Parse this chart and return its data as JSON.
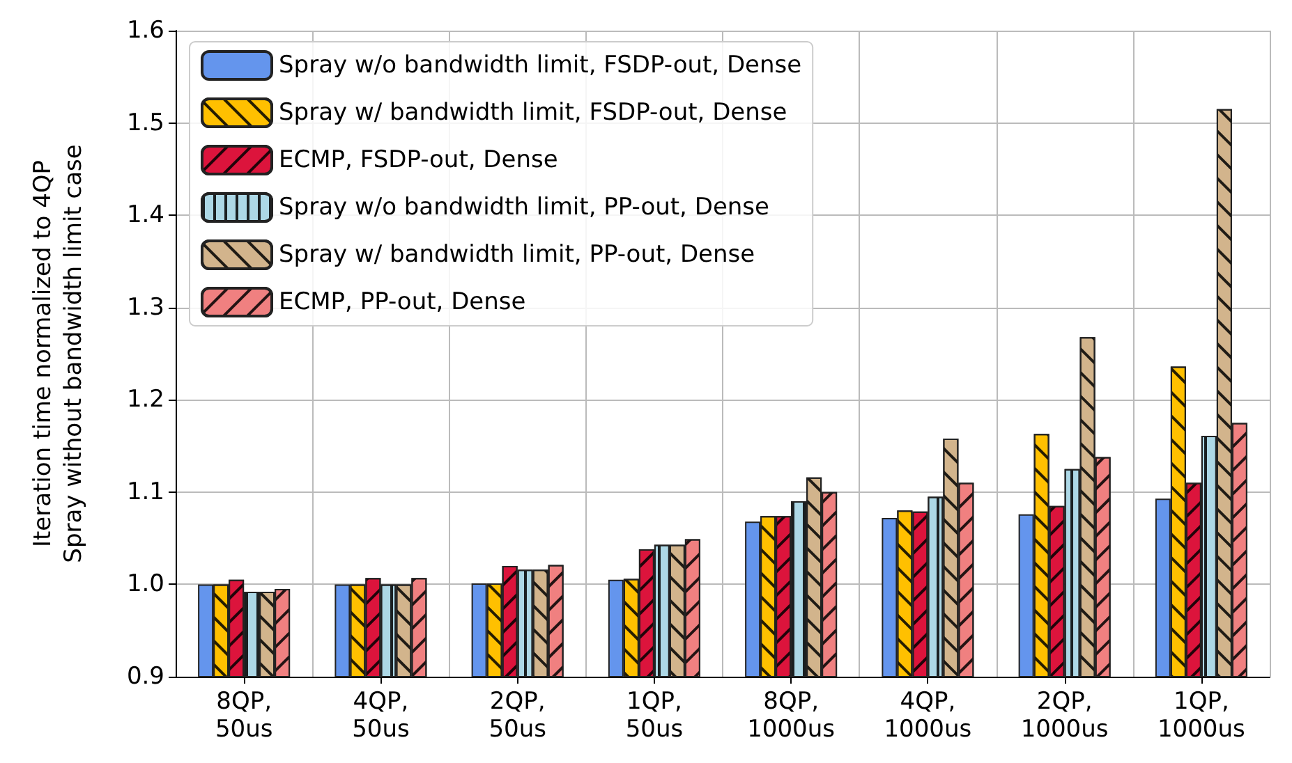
{
  "chart_data": {
    "type": "bar",
    "ylabel": "Iteration time normalized to 4QP\nSpray without bandwidth limit case",
    "categories": [
      "8QP,\n50us",
      "4QP,\n50us",
      "2QP,\n50us",
      "1QP,\n50us",
      "8QP,\n1000us",
      "4QP,\n1000us",
      "2QP,\n1000us",
      "1QP,\n1000us"
    ],
    "series": [
      {
        "name": "Spray w/o bandwidth limit, FSDP-out, Dense",
        "color": "#6495ed",
        "values": [
          1.0,
          1.0,
          1.001,
          1.005,
          1.068,
          1.072,
          1.076,
          1.093
        ]
      },
      {
        "name": "Spray w/ bandwidth limit, FSDP-out, Dense",
        "color": "#ffc000",
        "values": [
          1.0,
          1.0,
          1.001,
          1.006,
          1.074,
          1.08,
          1.163,
          1.236
        ]
      },
      {
        "name": "ECMP, FSDP-out, Dense",
        "color": "#dc143c",
        "values": [
          1.005,
          1.007,
          1.02,
          1.038,
          1.074,
          1.079,
          1.085,
          1.11
        ]
      },
      {
        "name": "Spray w/o bandwidth limit, PP-out, Dense",
        "color": "#add8e6",
        "values": [
          0.992,
          1.0,
          1.016,
          1.043,
          1.09,
          1.095,
          1.125,
          1.161
        ]
      },
      {
        "name": "Spray w/ bandwidth limit, PP-out, Dense",
        "color": "#d2b48c",
        "values": [
          0.992,
          1.0,
          1.016,
          1.043,
          1.116,
          1.158,
          1.268,
          1.515
        ]
      },
      {
        "name": "ECMP, PP-out, Dense",
        "color": "#f08080",
        "values": [
          0.995,
          1.007,
          1.021,
          1.049,
          1.1,
          1.11,
          1.138,
          1.175
        ]
      }
    ],
    "ylim": [
      0.9,
      1.6
    ],
    "yticks": [
      0.9,
      {
        "value": 1,
        "label": "1.0"
      },
      1.1,
      1.2,
      1.3,
      1.4,
      1.5,
      1.6
    ],
    "grid": true,
    "legend": "top left"
  }
}
